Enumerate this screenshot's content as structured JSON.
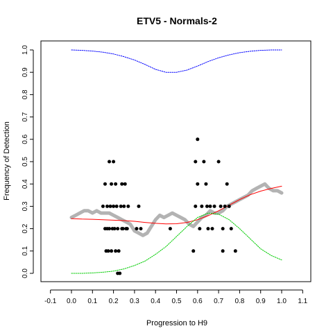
{
  "chart_data": {
    "type": "scatter",
    "title": "ETV5 - Normals-2",
    "xlabel": "Progression to H9",
    "ylabel": "Frequency of Detection",
    "xlim": [
      -0.1,
      1.1
    ],
    "ylim": [
      0.0,
      1.0
    ],
    "xticks": [
      "-0.1",
      "0.0",
      "0.1",
      "0.2",
      "0.3",
      "0.4",
      "0.5",
      "0.6",
      "0.7",
      "0.8",
      "0.9",
      "1.0",
      "1.1"
    ],
    "yticks": [
      "0.0",
      "0.1",
      "0.2",
      "0.3",
      "0.4",
      "0.5",
      "0.6",
      "0.7",
      "0.8",
      "0.9",
      "1.0"
    ],
    "grid": false,
    "colors": {
      "points": "#000000",
      "running_mean": "#b3b3b3",
      "fit": "#ff0000",
      "upper": "#0000ff",
      "lower": "#00cc00"
    },
    "series": [
      {
        "kind": "points",
        "x": [
          0.15,
          0.16,
          0.16,
          0.165,
          0.17,
          0.17,
          0.175,
          0.18,
          0.18,
          0.185,
          0.19,
          0.19,
          0.195,
          0.2,
          0.2,
          0.205,
          0.21,
          0.21,
          0.215,
          0.22,
          0.22,
          0.225,
          0.23,
          0.235,
          0.24,
          0.24,
          0.245,
          0.25,
          0.255,
          0.26,
          0.265,
          0.27,
          0.31,
          0.32,
          0.33,
          0.47,
          0.58,
          0.59,
          0.59,
          0.6,
          0.6,
          0.61,
          0.62,
          0.63,
          0.64,
          0.645,
          0.65,
          0.66,
          0.67,
          0.68,
          0.7,
          0.71,
          0.72,
          0.72,
          0.73,
          0.74,
          0.75,
          0.76,
          0.78
        ],
        "y": [
          0.3,
          0.4,
          0.2,
          0.1,
          0.2,
          0.3,
          0.1,
          0.5,
          0.2,
          0.3,
          0.4,
          0.1,
          0.2,
          0.5,
          0.3,
          0.2,
          0.4,
          0.1,
          0.3,
          0.0,
          0.2,
          0.1,
          0.0,
          0.3,
          0.2,
          0.4,
          0.2,
          0.3,
          0.4,
          0.2,
          0.2,
          0.3,
          0.2,
          0.3,
          0.2,
          0.2,
          0.1,
          0.5,
          0.3,
          0.6,
          0.4,
          0.2,
          0.3,
          0.5,
          0.4,
          0.3,
          0.2,
          0.3,
          0.2,
          0.3,
          0.5,
          0.3,
          0.1,
          0.2,
          0.3,
          0.4,
          0.3,
          0.2,
          0.1
        ]
      },
      {
        "kind": "running_mean",
        "x": [
          0.0,
          0.02,
          0.04,
          0.06,
          0.08,
          0.1,
          0.12,
          0.14,
          0.16,
          0.18,
          0.2,
          0.22,
          0.24,
          0.26,
          0.28,
          0.3,
          0.32,
          0.34,
          0.36,
          0.38,
          0.4,
          0.42,
          0.44,
          0.46,
          0.48,
          0.5,
          0.52,
          0.54,
          0.56,
          0.58,
          0.6,
          0.62,
          0.64,
          0.66,
          0.68,
          0.7,
          0.72,
          0.74,
          0.76,
          0.78,
          0.8,
          0.82,
          0.84,
          0.86,
          0.88,
          0.9,
          0.92,
          0.94,
          0.96,
          0.98,
          1.0
        ],
        "y": [
          0.25,
          0.26,
          0.27,
          0.28,
          0.28,
          0.27,
          0.28,
          0.27,
          0.27,
          0.27,
          0.26,
          0.25,
          0.24,
          0.23,
          0.22,
          0.19,
          0.18,
          0.17,
          0.18,
          0.21,
          0.24,
          0.26,
          0.25,
          0.26,
          0.27,
          0.26,
          0.25,
          0.24,
          0.22,
          0.21,
          0.23,
          0.25,
          0.26,
          0.28,
          0.27,
          0.27,
          0.28,
          0.3,
          0.31,
          0.32,
          0.33,
          0.34,
          0.35,
          0.37,
          0.38,
          0.39,
          0.4,
          0.38,
          0.37,
          0.37,
          0.36
        ]
      },
      {
        "kind": "fit",
        "x": [
          0.0,
          0.05,
          0.1,
          0.15,
          0.2,
          0.25,
          0.3,
          0.35,
          0.4,
          0.45,
          0.5,
          0.55,
          0.6,
          0.65,
          0.7,
          0.75,
          0.8,
          0.85,
          0.9,
          0.95,
          1.0
        ],
        "y": [
          0.245,
          0.243,
          0.242,
          0.24,
          0.238,
          0.236,
          0.233,
          0.228,
          0.224,
          0.221,
          0.222,
          0.228,
          0.24,
          0.258,
          0.28,
          0.305,
          0.33,
          0.352,
          0.368,
          0.38,
          0.39
        ]
      },
      {
        "kind": "upper",
        "x": [
          0.0,
          0.05,
          0.1,
          0.15,
          0.2,
          0.25,
          0.3,
          0.35,
          0.4,
          0.45,
          0.5,
          0.55,
          0.6,
          0.65,
          0.7,
          0.75,
          0.8,
          0.85,
          0.9,
          0.95,
          1.0
        ],
        "y": [
          1.0,
          0.998,
          0.995,
          0.99,
          0.982,
          0.97,
          0.955,
          0.935,
          0.913,
          0.9,
          0.9,
          0.91,
          0.928,
          0.948,
          0.965,
          0.978,
          0.988,
          0.994,
          0.998,
          1.0,
          1.0
        ]
      },
      {
        "kind": "lower",
        "x": [
          0.0,
          0.05,
          0.1,
          0.15,
          0.2,
          0.25,
          0.3,
          0.35,
          0.4,
          0.45,
          0.5,
          0.55,
          0.6,
          0.65,
          0.7,
          0.75,
          0.8,
          0.85,
          0.9,
          0.95,
          1.0
        ],
        "y": [
          0.0,
          0.0,
          0.002,
          0.005,
          0.01,
          0.02,
          0.035,
          0.055,
          0.085,
          0.12,
          0.165,
          0.21,
          0.25,
          0.27,
          0.265,
          0.24,
          0.2,
          0.155,
          0.11,
          0.08,
          0.06
        ]
      }
    ]
  }
}
